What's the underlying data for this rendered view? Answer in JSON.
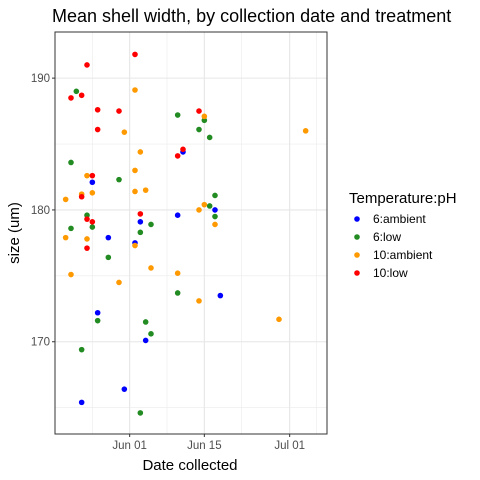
{
  "chart_data": {
    "type": "scatter",
    "title": "Mean shell width, by collection date and treatment",
    "xlabel": "Date collected",
    "ylabel": "size (um)",
    "x_type": "date",
    "x_ticks": [
      "Jun 01",
      "Jun 15",
      "Jul 01"
    ],
    "x_tick_dates": [
      "2021-06-01",
      "2021-06-15",
      "2021-07-01"
    ],
    "xlim": [
      "2021-05-18",
      "2021-07-08"
    ],
    "y_ticks": [
      170,
      180,
      190
    ],
    "ylim": [
      163,
      193.5
    ],
    "grid": true,
    "legend_title": "Temperature:pH",
    "legend_position": "right",
    "series": [
      {
        "name": "6:ambient",
        "color": "#0000ff",
        "points": [
          {
            "x": "2021-05-23",
            "y": 165.4
          },
          {
            "x": "2021-05-25",
            "y": 182.1
          },
          {
            "x": "2021-05-26",
            "y": 172.2
          },
          {
            "x": "2021-05-28",
            "y": 177.9
          },
          {
            "x": "2021-05-31",
            "y": 166.4
          },
          {
            "x": "2021-06-02",
            "y": 177.5
          },
          {
            "x": "2021-06-03",
            "y": 179.1
          },
          {
            "x": "2021-06-04",
            "y": 170.1
          },
          {
            "x": "2021-06-10",
            "y": 179.6
          },
          {
            "x": "2021-06-11",
            "y": 184.4
          },
          {
            "x": "2021-06-17",
            "y": 180.0
          },
          {
            "x": "2021-06-18",
            "y": 173.5
          }
        ]
      },
      {
        "name": "6:low",
        "color": "#228b22",
        "points": [
          {
            "x": "2021-05-21",
            "y": 183.6
          },
          {
            "x": "2021-05-21",
            "y": 178.6
          },
          {
            "x": "2021-05-22",
            "y": 189.0
          },
          {
            "x": "2021-05-23",
            "y": 169.4
          },
          {
            "x": "2021-05-24",
            "y": 179.6
          },
          {
            "x": "2021-05-25",
            "y": 178.7
          },
          {
            "x": "2021-05-26",
            "y": 171.6
          },
          {
            "x": "2021-05-28",
            "y": 176.4
          },
          {
            "x": "2021-05-30",
            "y": 182.3
          },
          {
            "x": "2021-06-03",
            "y": 164.6
          },
          {
            "x": "2021-06-03",
            "y": 178.3
          },
          {
            "x": "2021-06-04",
            "y": 171.5
          },
          {
            "x": "2021-06-05",
            "y": 170.6
          },
          {
            "x": "2021-06-05",
            "y": 178.9
          },
          {
            "x": "2021-06-10",
            "y": 187.2
          },
          {
            "x": "2021-06-10",
            "y": 173.7
          },
          {
            "x": "2021-06-14",
            "y": 186.1
          },
          {
            "x": "2021-06-15",
            "y": 186.8
          },
          {
            "x": "2021-06-16",
            "y": 185.5
          },
          {
            "x": "2021-06-16",
            "y": 180.3
          },
          {
            "x": "2021-06-17",
            "y": 181.1
          },
          {
            "x": "2021-06-17",
            "y": 179.5
          }
        ]
      },
      {
        "name": "10:ambient",
        "color": "#ff9900",
        "points": [
          {
            "x": "2021-05-20",
            "y": 180.8
          },
          {
            "x": "2021-05-20",
            "y": 177.9
          },
          {
            "x": "2021-05-21",
            "y": 175.1
          },
          {
            "x": "2021-05-23",
            "y": 181.2
          },
          {
            "x": "2021-05-24",
            "y": 182.6
          },
          {
            "x": "2021-05-24",
            "y": 177.8
          },
          {
            "x": "2021-05-25",
            "y": 181.3
          },
          {
            "x": "2021-05-30",
            "y": 174.5
          },
          {
            "x": "2021-05-31",
            "y": 185.9
          },
          {
            "x": "2021-06-02",
            "y": 189.1
          },
          {
            "x": "2021-06-02",
            "y": 183.0
          },
          {
            "x": "2021-06-02",
            "y": 181.4
          },
          {
            "x": "2021-06-02",
            "y": 177.3
          },
          {
            "x": "2021-06-03",
            "y": 184.4
          },
          {
            "x": "2021-06-04",
            "y": 181.5
          },
          {
            "x": "2021-06-05",
            "y": 175.6
          },
          {
            "x": "2021-06-10",
            "y": 175.2
          },
          {
            "x": "2021-06-14",
            "y": 180.0
          },
          {
            "x": "2021-06-14",
            "y": 173.1
          },
          {
            "x": "2021-06-15",
            "y": 180.4
          },
          {
            "x": "2021-06-15",
            "y": 187.1
          },
          {
            "x": "2021-06-17",
            "y": 178.9
          },
          {
            "x": "2021-06-29",
            "y": 171.7
          },
          {
            "x": "2021-07-04",
            "y": 186.0
          }
        ]
      },
      {
        "name": "10:low",
        "color": "#ff0000",
        "points": [
          {
            "x": "2021-05-21",
            "y": 188.5
          },
          {
            "x": "2021-05-23",
            "y": 188.7
          },
          {
            "x": "2021-05-23",
            "y": 181.0
          },
          {
            "x": "2021-05-24",
            "y": 191.0
          },
          {
            "x": "2021-05-24",
            "y": 179.3
          },
          {
            "x": "2021-05-24",
            "y": 177.1
          },
          {
            "x": "2021-05-25",
            "y": 182.6
          },
          {
            "x": "2021-05-25",
            "y": 179.1
          },
          {
            "x": "2021-05-26",
            "y": 187.6
          },
          {
            "x": "2021-05-26",
            "y": 186.1
          },
          {
            "x": "2021-05-30",
            "y": 187.5
          },
          {
            "x": "2021-06-02",
            "y": 191.8
          },
          {
            "x": "2021-06-03",
            "y": 179.7
          },
          {
            "x": "2021-06-10",
            "y": 184.1
          },
          {
            "x": "2021-06-11",
            "y": 184.6
          },
          {
            "x": "2021-06-14",
            "y": 187.5
          }
        ]
      }
    ]
  }
}
